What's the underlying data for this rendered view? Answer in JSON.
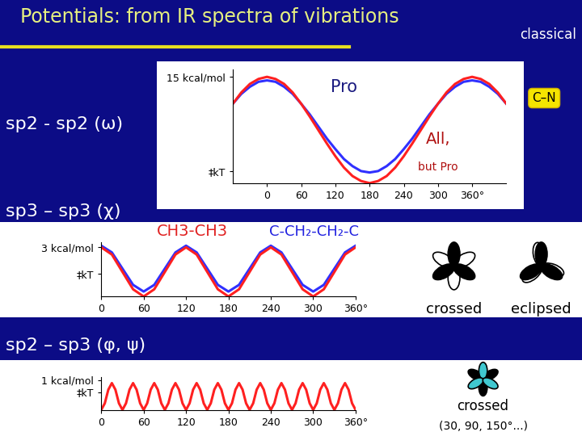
{
  "header": {
    "title": "Potentials: from IR spectra of vibrations",
    "tag": "classical"
  },
  "chart_data": [
    {
      "type": "line",
      "title": "sp2 - sp2 (ω)",
      "x": [
        -60,
        -45,
        -30,
        -15,
        0,
        15,
        30,
        45,
        60,
        75,
        90,
        105,
        120,
        135,
        150,
        165,
        180,
        195,
        210,
        225,
        240,
        255,
        270,
        285,
        300,
        315,
        330,
        345,
        360,
        375,
        390,
        405,
        420
      ],
      "series": [
        {
          "color": "#3030ff",
          "values": [
            11.2,
            12.6,
            13.6,
            14.3,
            14.5,
            14.3,
            13.6,
            12.6,
            11.2,
            9.7,
            8,
            6.3,
            4.8,
            3.4,
            2.4,
            1.7,
            1.5,
            1.7,
            2.4,
            3.4,
            4.8,
            6.3,
            8,
            9.7,
            11.2,
            12.6,
            13.6,
            14.3,
            14.5,
            14.3,
            13.6,
            12.6,
            11.2
          ]
        },
        {
          "color": "#ff2020",
          "values": [
            11.2,
            12.8,
            14,
            14.7,
            15,
            14.7,
            14,
            12.8,
            11.2,
            9.4,
            7.5,
            5.6,
            3.8,
            2.2,
            1,
            0.3,
            0,
            0.3,
            1,
            2.2,
            3.8,
            5.6,
            7.5,
            9.4,
            11.2,
            12.8,
            14,
            14.7,
            15,
            14.7,
            14,
            12.8,
            11.2
          ]
        }
      ],
      "xlim": [
        -60,
        420
      ],
      "xticks": [
        0,
        60,
        120,
        180,
        240,
        300,
        {
          "value": 360,
          "label": "360°"
        }
      ],
      "ylim": [
        0,
        16
      ],
      "yticks": [
        {
          "value": 1.7,
          "label": "‡kT"
        },
        {
          "value": 15,
          "label": "15 kcal/mol"
        }
      ],
      "annotations": [
        "Pro",
        "All,",
        "but Pro",
        "C–N"
      ]
    },
    {
      "type": "line",
      "title": "sp3 – sp3 (χ)",
      "x": [
        0,
        15,
        30,
        45,
        60,
        75,
        90,
        105,
        120,
        135,
        150,
        165,
        180,
        195,
        210,
        225,
        240,
        255,
        270,
        285,
        300,
        315,
        330,
        345,
        360
      ],
      "series": [
        {
          "color": "#3030ff",
          "values": [
            3.1,
            2.69,
            1.7,
            0.71,
            0.3,
            0.71,
            1.7,
            2.69,
            3.1,
            2.69,
            1.7,
            0.71,
            0.3,
            0.71,
            1.7,
            2.69,
            3.1,
            2.69,
            1.7,
            0.71,
            0.3,
            0.71,
            1.7,
            2.69,
            3.1
          ]
        },
        {
          "color": "#ff2020",
          "values": [
            3,
            2.56,
            1.5,
            0.44,
            0,
            0.44,
            1.5,
            2.56,
            3,
            2.56,
            1.5,
            0.44,
            0,
            0.44,
            1.5,
            2.56,
            3,
            2.56,
            1.5,
            0.44,
            0,
            0.44,
            1.5,
            2.56,
            3
          ]
        }
      ],
      "xlim": [
        0,
        360
      ],
      "xticks": [
        0,
        60,
        120,
        180,
        240,
        300,
        {
          "value": 360,
          "label": "360°"
        }
      ],
      "ylim": [
        0,
        3.3
      ],
      "yticks": [
        {
          "value": 1.4,
          "label": "‡kT"
        },
        {
          "value": 3,
          "label": "3 kcal/mol"
        }
      ],
      "annotations": [
        "CH3-CH3",
        "C-CH₂-CH₂-C",
        "crossed",
        "eclipsed"
      ]
    },
    {
      "type": "line",
      "title": "sp2 – sp3 (φ, ψ)",
      "x": [
        0,
        5,
        10,
        15,
        20,
        25,
        30,
        35,
        40,
        45,
        50,
        55,
        60,
        65,
        70,
        75,
        80,
        85,
        90,
        95,
        100,
        105,
        110,
        115,
        120,
        125,
        130,
        135,
        140,
        145,
        150,
        155,
        160,
        165,
        170,
        175,
        180,
        185,
        190,
        195,
        200,
        205,
        210,
        215,
        220,
        225,
        230,
        235,
        240,
        245,
        250,
        255,
        260,
        265,
        270,
        275,
        280,
        285,
        290,
        295,
        300,
        305,
        310,
        315,
        320,
        325,
        330,
        335,
        340,
        345,
        350,
        355,
        360
      ],
      "series": [
        {
          "color": "#ff2020",
          "values": [
            0,
            0.22,
            0.68,
            0.9,
            0.68,
            0.22,
            0,
            0.22,
            0.68,
            0.9,
            0.68,
            0.22,
            0,
            0.22,
            0.68,
            0.9,
            0.68,
            0.22,
            0,
            0.22,
            0.68,
            0.9,
            0.68,
            0.22,
            0,
            0.22,
            0.68,
            0.9,
            0.68,
            0.22,
            0,
            0.22,
            0.68,
            0.9,
            0.68,
            0.22,
            0,
            0.22,
            0.68,
            0.9,
            0.68,
            0.22,
            0,
            0.22,
            0.68,
            0.9,
            0.68,
            0.22,
            0,
            0.22,
            0.68,
            0.9,
            0.68,
            0.22,
            0,
            0.22,
            0.68,
            0.9,
            0.68,
            0.22,
            0,
            0.22,
            0.68,
            0.9,
            0.68,
            0.22,
            0,
            0.22,
            0.68,
            0.9,
            0.68,
            0.22,
            0
          ]
        }
      ],
      "xlim": [
        0,
        360
      ],
      "xticks": [
        0,
        60,
        120,
        180,
        240,
        300,
        {
          "value": 360,
          "label": "360°"
        }
      ],
      "ylim": [
        0,
        1.1
      ],
      "yticks": [
        {
          "value": 0.6,
          "label": "‡kT"
        },
        {
          "value": 1,
          "label": "1 kcal/mol"
        }
      ],
      "annotations": [
        "crossed",
        "(30, 90, 150°...)"
      ]
    }
  ]
}
